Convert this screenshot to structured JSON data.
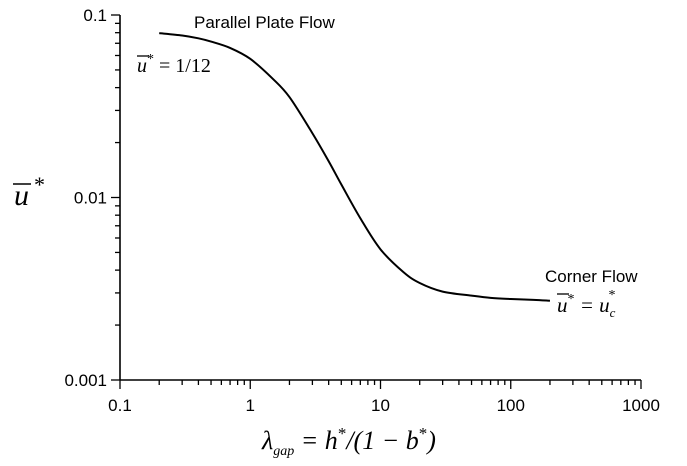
{
  "chart_data": {
    "type": "line",
    "x_scale": "log",
    "y_scale": "log",
    "xlim": [
      0.1,
      1000
    ],
    "ylim": [
      0.001,
      0.1
    ],
    "x_ticks": [
      0.1,
      1,
      10,
      100,
      1000
    ],
    "y_ticks": [
      0.001,
      0.01,
      0.1
    ],
    "x_tick_labels": [
      "0.1",
      "1",
      "10",
      "100",
      "1000"
    ],
    "y_tick_labels": [
      "0.001",
      "0.01",
      "0.1"
    ],
    "grid": false,
    "xlabel_parts": {
      "lambda": "λ",
      "lambda_sub": "gap",
      "eq": " = h",
      "star1": "*",
      "mid": "/(1 − b",
      "star2": "*",
      "close": ")"
    },
    "ylabel_parts": {
      "symbol": "u",
      "star": "*"
    },
    "annotations": {
      "parallel_title": "Parallel Plate Flow",
      "parallel_eq": {
        "symbol": "u",
        "star": "*",
        "rhs": " = 1/12"
      },
      "corner_title": "Corner Flow",
      "corner_eq": {
        "symbol": "u",
        "star": "*",
        "eq": " = u",
        "sub": "c",
        "star2": "*"
      }
    },
    "series": [
      {
        "color": "#000000",
        "x": [
          0.2,
          0.3,
          0.4,
          0.5,
          0.7,
          1,
          1.5,
          2,
          3,
          4,
          5,
          7,
          10,
          15,
          20,
          30,
          50,
          70,
          100,
          150,
          200
        ],
        "y": [
          0.0795,
          0.0772,
          0.0745,
          0.0715,
          0.066,
          0.0575,
          0.0445,
          0.0355,
          0.0225,
          0.0158,
          0.0118,
          0.0077,
          0.0052,
          0.0039,
          0.0034,
          0.00305,
          0.0029,
          0.00282,
          0.00278,
          0.00275,
          0.00272
        ]
      }
    ]
  }
}
